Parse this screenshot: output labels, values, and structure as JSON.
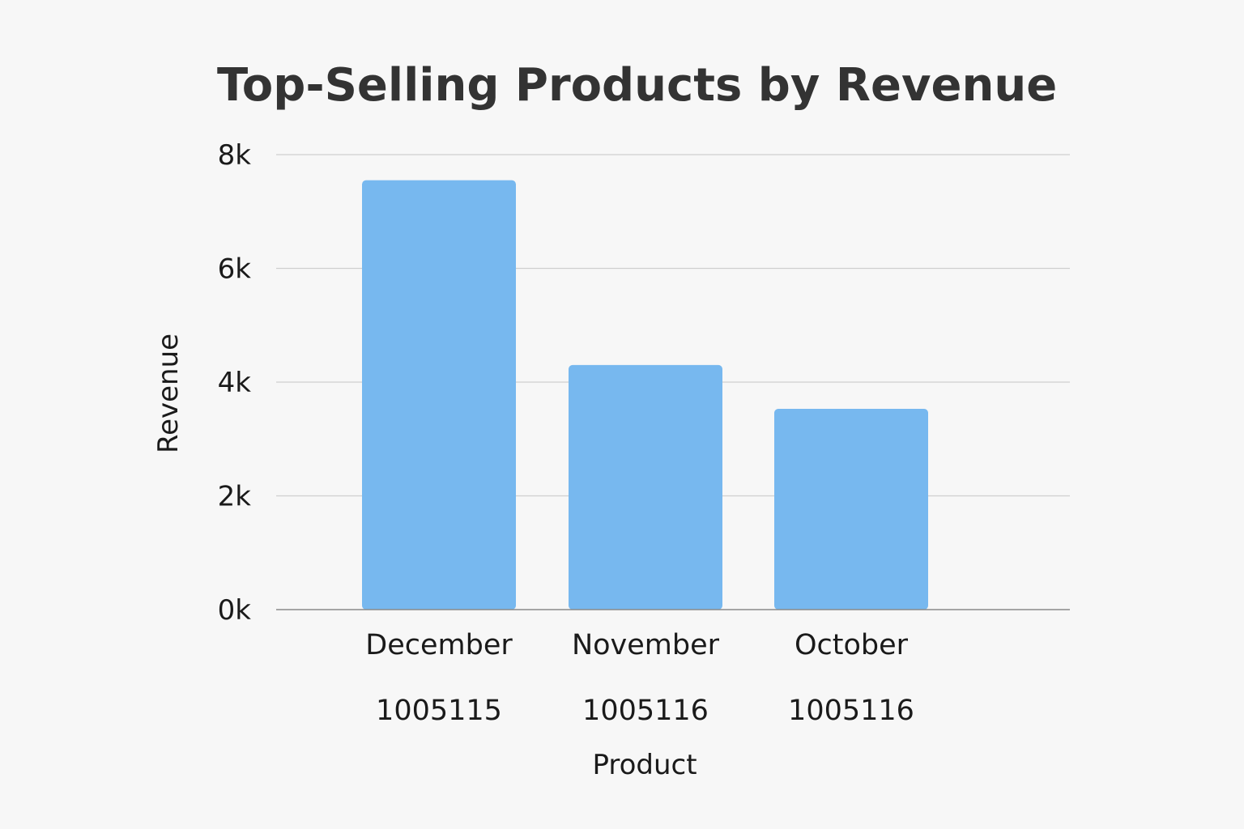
{
  "chart_data": {
    "type": "bar",
    "title": "Top-Selling Products by Revenue",
    "xlabel": "Product",
    "ylabel": "Revenue",
    "ylim": [
      0,
      8000
    ],
    "yticks": [
      0,
      2000,
      4000,
      6000,
      8000
    ],
    "ytick_labels": [
      "0k",
      "2k",
      "4k",
      "6k",
      "8k"
    ],
    "grid": true,
    "categories": [
      "December",
      "November",
      "October"
    ],
    "sub_labels": [
      "1005115",
      "1005116",
      "1005116"
    ],
    "values": [
      7550,
      4300,
      3530
    ],
    "bar_color": "#77b8ef"
  }
}
